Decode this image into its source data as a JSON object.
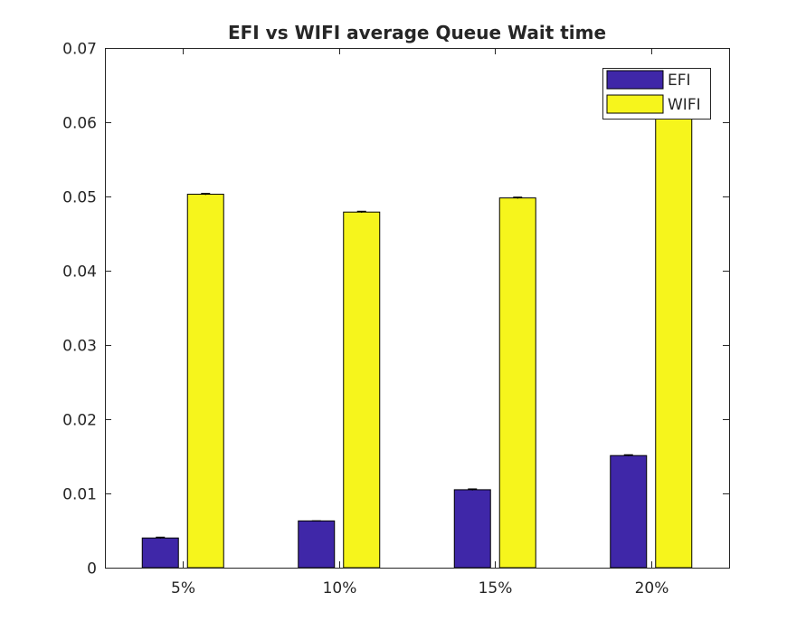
{
  "chart_data": {
    "type": "bar",
    "title": "EFI vs WIFI average Queue Wait time",
    "xlabel": "",
    "ylabel": "",
    "categories": [
      "5%",
      "10%",
      "15%",
      "20%"
    ],
    "series": [
      {
        "name": "EFI",
        "color": "#3f27a8",
        "values": [
          0.004,
          0.0063,
          0.0105,
          0.0151
        ],
        "errors": [
          0.0001,
          0.0,
          0.0001,
          0.0001
        ]
      },
      {
        "name": "WIFI",
        "color": "#f6f51c",
        "values": [
          0.0503,
          0.0479,
          0.0498,
          0.0652
        ],
        "errors": [
          0.0001,
          0.0001,
          0.0001,
          0.0001
        ]
      }
    ],
    "ylim": [
      0,
      0.07
    ],
    "yticks": [
      0,
      0.01,
      0.02,
      0.03,
      0.04,
      0.05,
      0.06,
      0.07
    ],
    "ytick_labels": [
      "0",
      "0.01",
      "0.02",
      "0.03",
      "0.04",
      "0.05",
      "0.06",
      "0.07"
    ],
    "grid": false,
    "legend_position": "top-right"
  }
}
